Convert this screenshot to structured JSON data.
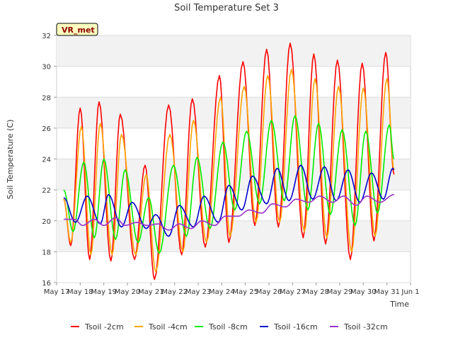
{
  "chart_data": {
    "type": "line",
    "title": "Soil Temperature Set 3",
    "xlabel": "Time",
    "ylabel": "Soil Temperature (C)",
    "station_label": "VR_met",
    "xlim": [
      0,
      15
    ],
    "ylim": [
      16,
      32
    ],
    "grid": true,
    "legend_position": "bottom",
    "x_tick_labels": [
      "May 17",
      "May 18",
      "May 19",
      "May 20",
      "May 21",
      "May 22",
      "May 23",
      "May 24",
      "May 25",
      "May 26",
      "May 27",
      "May 28",
      "May 29",
      "May 30",
      "May 31",
      "Jun 1"
    ],
    "y_ticks": [
      16,
      18,
      20,
      22,
      24,
      26,
      28,
      30,
      32
    ],
    "x_unit_note": "x values are days from May 17",
    "series": [
      {
        "name": "Tsoil -2cm",
        "color": "#ff0000",
        "points": [
          [
            0.3,
            21.4
          ],
          [
            0.6,
            18.4
          ],
          [
            1.0,
            27.3
          ],
          [
            1.4,
            17.5
          ],
          [
            1.8,
            27.7
          ],
          [
            2.3,
            17.4
          ],
          [
            2.7,
            26.9
          ],
          [
            3.3,
            17.5
          ],
          [
            3.75,
            23.6
          ],
          [
            4.15,
            16.2
          ],
          [
            4.75,
            27.5
          ],
          [
            5.3,
            17.8
          ],
          [
            5.75,
            27.9
          ],
          [
            6.3,
            18.3
          ],
          [
            6.9,
            29.4
          ],
          [
            7.3,
            18.6
          ],
          [
            7.9,
            30.3
          ],
          [
            8.4,
            19.7
          ],
          [
            8.9,
            31.1
          ],
          [
            9.4,
            19.6
          ],
          [
            9.9,
            31.5
          ],
          [
            10.45,
            18.9
          ],
          [
            10.9,
            30.8
          ],
          [
            11.4,
            18.5
          ],
          [
            11.9,
            30.4
          ],
          [
            12.45,
            17.5
          ],
          [
            12.95,
            30.2
          ],
          [
            13.45,
            18.7
          ],
          [
            13.95,
            30.9
          ],
          [
            14.3,
            23.0
          ]
        ]
      },
      {
        "name": "Tsoil -4cm",
        "color": "#ffa500",
        "points": [
          [
            0.3,
            21.4
          ],
          [
            0.6,
            18.6
          ],
          [
            1.05,
            26.1
          ],
          [
            1.45,
            17.8
          ],
          [
            1.85,
            26.3
          ],
          [
            2.35,
            17.8
          ],
          [
            2.75,
            25.6
          ],
          [
            3.35,
            17.8
          ],
          [
            3.8,
            23.0
          ],
          [
            4.2,
            16.7
          ],
          [
            4.8,
            25.6
          ],
          [
            5.35,
            18.0
          ],
          [
            5.8,
            26.5
          ],
          [
            6.35,
            18.6
          ],
          [
            6.95,
            28.0
          ],
          [
            7.35,
            19.0
          ],
          [
            7.95,
            28.7
          ],
          [
            8.45,
            19.9
          ],
          [
            8.95,
            29.4
          ],
          [
            9.45,
            19.9
          ],
          [
            9.95,
            29.8
          ],
          [
            10.5,
            19.3
          ],
          [
            10.95,
            29.2
          ],
          [
            11.45,
            18.9
          ],
          [
            11.95,
            28.7
          ],
          [
            12.5,
            18.0
          ],
          [
            13.0,
            28.6
          ],
          [
            13.5,
            19.0
          ],
          [
            14.0,
            29.2
          ],
          [
            14.3,
            23.3
          ]
        ]
      },
      {
        "name": "Tsoil -8cm",
        "color": "#00ee00",
        "points": [
          [
            0.3,
            22.0
          ],
          [
            0.7,
            19.3
          ],
          [
            1.15,
            23.8
          ],
          [
            1.6,
            18.9
          ],
          [
            2.0,
            24.0
          ],
          [
            2.5,
            18.8
          ],
          [
            2.9,
            23.3
          ],
          [
            3.45,
            18.6
          ],
          [
            3.9,
            21.5
          ],
          [
            4.35,
            17.9
          ],
          [
            4.95,
            23.6
          ],
          [
            5.5,
            19.0
          ],
          [
            5.95,
            24.1
          ],
          [
            6.5,
            19.5
          ],
          [
            7.05,
            25.1
          ],
          [
            7.55,
            20.7
          ],
          [
            8.05,
            25.8
          ],
          [
            8.6,
            21.1
          ],
          [
            9.1,
            26.5
          ],
          [
            9.65,
            21.3
          ],
          [
            10.1,
            26.8
          ],
          [
            10.65,
            20.7
          ],
          [
            11.1,
            26.3
          ],
          [
            11.6,
            20.4
          ],
          [
            12.1,
            25.9
          ],
          [
            12.65,
            19.7
          ],
          [
            13.1,
            25.8
          ],
          [
            13.6,
            20.5
          ],
          [
            14.1,
            26.2
          ],
          [
            14.3,
            24.0
          ]
        ]
      },
      {
        "name": "Tsoil -16cm",
        "color": "#0000cc",
        "points": [
          [
            0.3,
            21.5
          ],
          [
            0.8,
            19.9
          ],
          [
            1.3,
            21.6
          ],
          [
            1.85,
            19.8
          ],
          [
            2.2,
            21.7
          ],
          [
            2.75,
            19.6
          ],
          [
            3.2,
            21.2
          ],
          [
            3.8,
            19.5
          ],
          [
            4.2,
            20.4
          ],
          [
            4.75,
            19.0
          ],
          [
            5.2,
            21.0
          ],
          [
            5.8,
            19.6
          ],
          [
            6.25,
            21.6
          ],
          [
            6.85,
            19.9
          ],
          [
            7.3,
            22.3
          ],
          [
            7.85,
            20.7
          ],
          [
            8.3,
            22.9
          ],
          [
            8.9,
            21.1
          ],
          [
            9.35,
            23.4
          ],
          [
            9.85,
            21.3
          ],
          [
            10.35,
            23.6
          ],
          [
            10.85,
            21.4
          ],
          [
            11.35,
            23.5
          ],
          [
            11.85,
            21.3
          ],
          [
            12.35,
            23.3
          ],
          [
            12.85,
            21.2
          ],
          [
            13.35,
            23.1
          ],
          [
            13.85,
            21.4
          ],
          [
            14.25,
            23.4
          ],
          [
            14.3,
            23.3
          ]
        ]
      },
      {
        "name": "Tsoil -32cm",
        "color": "#9932cc",
        "points": [
          [
            0.3,
            20.1
          ],
          [
            0.75,
            20.1
          ],
          [
            1.1,
            19.7
          ],
          [
            1.6,
            20.1
          ],
          [
            2.0,
            19.7
          ],
          [
            2.5,
            20.2
          ],
          [
            2.9,
            19.7
          ],
          [
            3.4,
            19.9
          ],
          [
            3.85,
            19.7
          ],
          [
            4.3,
            19.8
          ],
          [
            4.75,
            19.4
          ],
          [
            5.2,
            19.8
          ],
          [
            5.7,
            19.5
          ],
          [
            6.15,
            20.0
          ],
          [
            6.7,
            19.7
          ],
          [
            7.15,
            20.3
          ],
          [
            7.7,
            20.3
          ],
          [
            8.15,
            20.7
          ],
          [
            8.7,
            20.5
          ],
          [
            9.15,
            21.1
          ],
          [
            9.7,
            20.9
          ],
          [
            10.15,
            21.4
          ],
          [
            10.7,
            21.2
          ],
          [
            11.15,
            21.6
          ],
          [
            11.7,
            21.2
          ],
          [
            12.15,
            21.6
          ],
          [
            12.7,
            21.0
          ],
          [
            13.15,
            21.6
          ],
          [
            13.7,
            21.2
          ],
          [
            14.3,
            21.7
          ]
        ]
      }
    ]
  }
}
